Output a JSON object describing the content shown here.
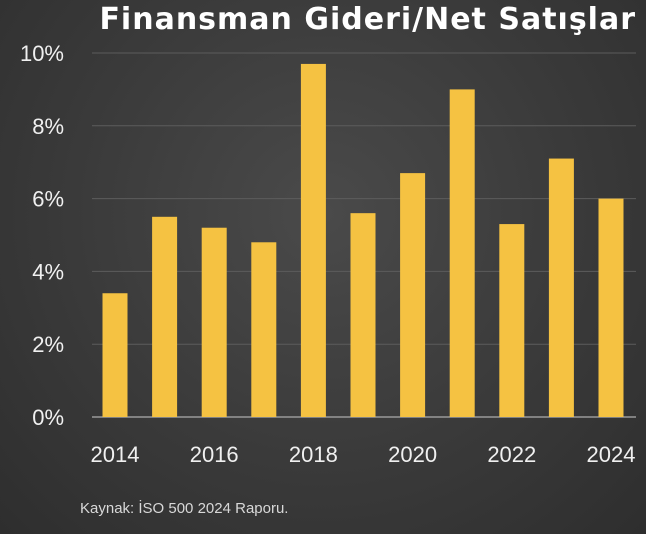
{
  "chart_data": {
    "type": "bar",
    "title": "Finansman Gideri/Net Satışlar",
    "categories": [
      "2014",
      "2015",
      "2016",
      "2017",
      "2018",
      "2019",
      "2020",
      "2021",
      "2022",
      "2023",
      "2024"
    ],
    "values": [
      3.4,
      5.5,
      5.2,
      4.8,
      9.7,
      5.6,
      6.7,
      9.0,
      5.3,
      7.1,
      6.0
    ],
    "x_tick_labels": [
      "2014",
      "2016",
      "2018",
      "2020",
      "2022",
      "2024"
    ],
    "y_tick_labels": [
      "0%",
      "2%",
      "4%",
      "6%",
      "8%",
      "10%"
    ],
    "y_ticks": [
      0,
      2,
      4,
      6,
      8,
      10
    ],
    "ylim": [
      0,
      10
    ],
    "grid": true,
    "bar_color": "#f5c242",
    "source": "Kaynak: İSO 500 2024 Raporu."
  }
}
